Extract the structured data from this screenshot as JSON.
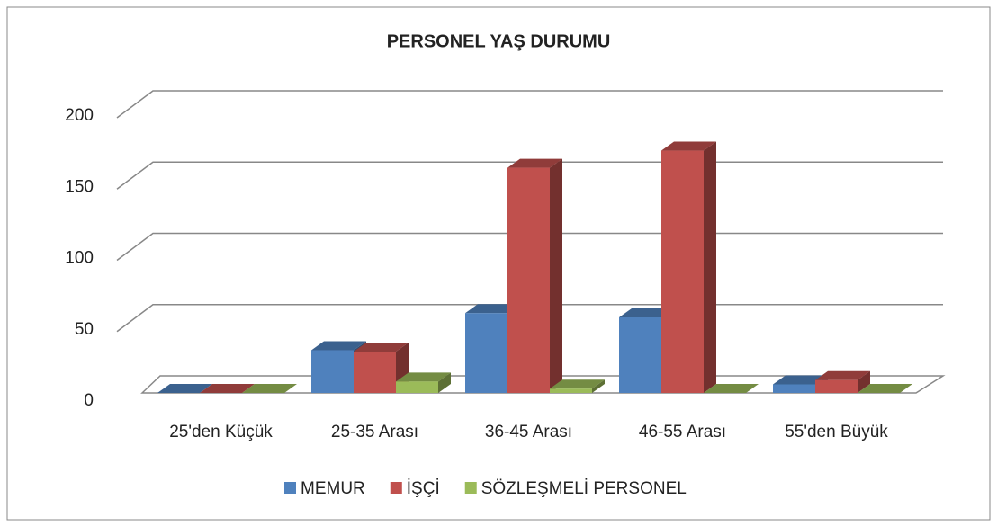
{
  "chart_data": {
    "type": "bar3d",
    "title": "PERSONEL YAŞ DURUMU",
    "categories": [
      "25'den Küçük",
      "25-35 Arası",
      "36-45 Arası",
      "46-55 Arası",
      "55'den Büyük"
    ],
    "series": [
      {
        "name": "MEMUR",
        "color": "#4f81bd",
        "values": [
          0,
          30,
          56,
          53,
          6
        ]
      },
      {
        "name": "İŞÇİ",
        "color": "#c0504d",
        "values": [
          0,
          29,
          158,
          170,
          9
        ]
      },
      {
        "name": "SÖZLEŞMELİ PERSONEL",
        "color": "#9bbb59",
        "values": [
          0,
          8,
          3,
          0,
          0
        ]
      }
    ],
    "ylim": [
      0,
      200
    ],
    "yticks": [
      0,
      50,
      100,
      150,
      200
    ],
    "grid": true,
    "legend": "bottom"
  }
}
